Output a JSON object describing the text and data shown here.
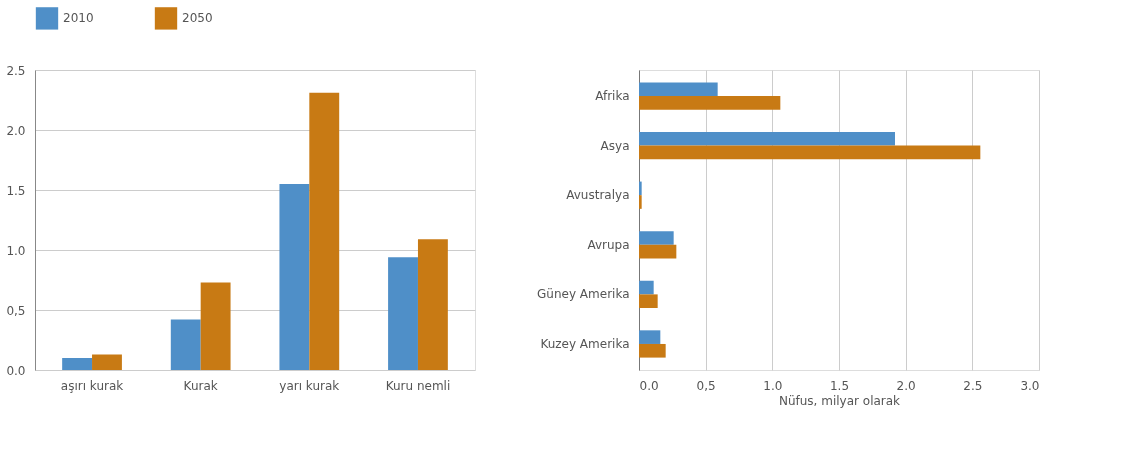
{
  "chart_data": [
    {
      "type": "bar",
      "categories": [
        "aşırı kurak",
        "Kurak",
        "yarı kurak",
        "Kuru nemli"
      ],
      "series": [
        {
          "name": "2010",
          "color": "#4f8fc8",
          "values": [
            0.1,
            0.42,
            1.55,
            0.94
          ]
        },
        {
          "name": "2050",
          "color": "#c87a14",
          "values": [
            0.13,
            0.73,
            2.31,
            1.09
          ]
        }
      ],
      "ylim": [
        0,
        2.5
      ],
      "yticks": [
        "0.0",
        {
          "value": 0.5,
          "label": "0,5"
        },
        "1.0",
        "1.5",
        "2.0",
        "2.5"
      ],
      "grid": "y",
      "legend": "top left"
    },
    {
      "type": "bar",
      "orientation": "horizontal",
      "categories": [
        "Afrika",
        "Asya",
        "Avustralya",
        "Avrupa",
        "Güney Amerika",
        "Kuzey Amerika"
      ],
      "series": [
        {
          "color": "#4f8fc8",
          "values": [
            0.59,
            1.92,
            0.02,
            0.26,
            0.11,
            0.16
          ]
        },
        {
          "color": "#c87a14",
          "values": [
            1.06,
            2.56,
            0.02,
            0.28,
            0.14,
            0.2
          ]
        }
      ],
      "xlim": [
        0,
        3
      ],
      "xticks": [
        {
          "value": 0,
          "label": "0.0"
        },
        {
          "value": 0.5,
          "label": "0,5"
        },
        {
          "value": 1,
          "label": "1.0"
        },
        {
          "value": 1.5,
          "label": "1.5"
        },
        {
          "value": 2,
          "label": "2.0"
        },
        {
          "value": 2.5,
          "label": "2.5"
        },
        {
          "value": 3,
          "label": "3.0"
        }
      ],
      "xlabel": "Nüfus, milyar olarak",
      "grid": "x"
    }
  ]
}
